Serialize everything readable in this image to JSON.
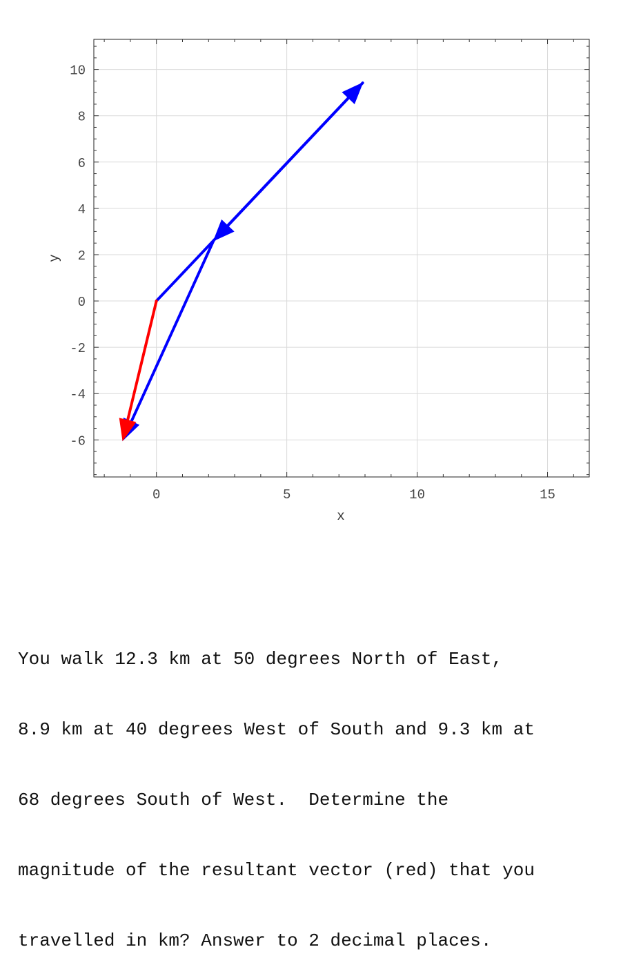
{
  "chart_data": {
    "type": "vector-plot",
    "xlabel": "x",
    "ylabel": "y",
    "xlim": [
      -2.4,
      16.6
    ],
    "ylim": [
      -7.6,
      11.3
    ],
    "grid": true,
    "xticks": [
      0,
      5,
      10,
      15
    ],
    "yticks": [
      -6,
      -4,
      -2,
      0,
      2,
      4,
      6,
      8,
      10
    ],
    "vectors": [
      {
        "name": "",
        "from": [
          0,
          0
        ],
        "to": [
          7.91,
          9.42
        ],
        "color": "#0000ff",
        "role": "component"
      },
      {
        "name": "",
        "from": [
          7.91,
          9.42
        ],
        "to": [
          2.19,
          2.6
        ],
        "color": "#0000ff",
        "role": "component"
      },
      {
        "name": "",
        "from": [
          2.19,
          2.6
        ],
        "to": [
          -1.29,
          -6.02
        ],
        "color": "#0000ff",
        "role": "component"
      },
      {
        "name": "",
        "from": [
          0,
          0
        ],
        "to": [
          -1.29,
          -6.02
        ],
        "color": "#ff0000",
        "role": "resultant"
      }
    ]
  },
  "question": {
    "lines": [
      "You walk 12.3 km at 50 degrees North of East,",
      "8.9 km at 40 degrees West of South and 9.3 km at",
      "68 degrees South of West.  Determine the",
      "magnitude of the resultant vector (red) that you",
      "travelled in km? Answer to 2 decimal places."
    ]
  }
}
